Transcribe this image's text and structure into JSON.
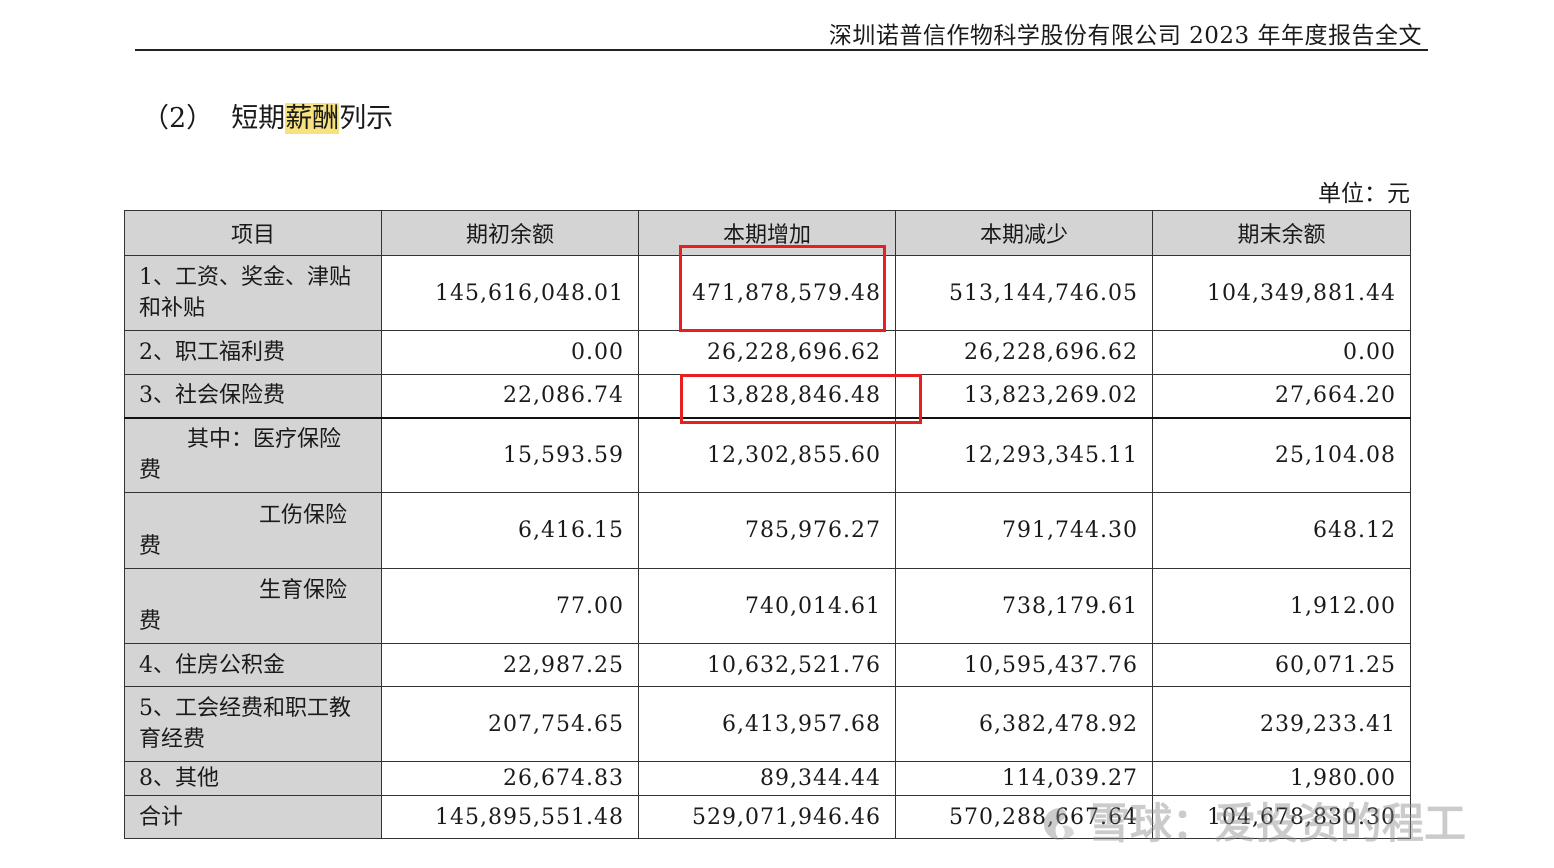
{
  "header": {
    "title": "深圳诺普信作物科学股份有限公司 2023 年年度报告全文"
  },
  "section": {
    "number": "（2）",
    "title_pre": "短期",
    "title_hl": "薪酬",
    "title_post": "列示"
  },
  "unit": "单位：元",
  "table": {
    "columns": [
      "项目",
      "期初余额",
      "本期增加",
      "本期减少",
      "期末余额"
    ],
    "rows": [
      {
        "item_a": "1、工资、奖金、津贴",
        "item_b": "和补贴",
        "values": [
          "145,616,048.01",
          "471,878,579.48",
          "513,144,746.05",
          "104,349,881.44"
        ]
      },
      {
        "item_a": "2、职工福利费",
        "item_b": "",
        "values": [
          "0.00",
          "26,228,696.62",
          "26,228,696.62",
          "0.00"
        ]
      },
      {
        "item_a": "3、社会保险费",
        "item_b": "",
        "values": [
          "22,086.74",
          "13,828,846.48",
          "13,823,269.02",
          "27,664.20"
        ]
      },
      {
        "item_a": "其中：医疗保险",
        "item_b": "费",
        "values": [
          "15,593.59",
          "12,302,855.60",
          "12,293,345.11",
          "25,104.08"
        ]
      },
      {
        "item_a": "工伤保险",
        "item_b": "费",
        "values": [
          "6,416.15",
          "785,976.27",
          "791,744.30",
          "648.12"
        ]
      },
      {
        "item_a": "生育保险",
        "item_b": "费",
        "values": [
          "77.00",
          "740,014.61",
          "738,179.61",
          "1,912.00"
        ]
      },
      {
        "item_a": "4、住房公积金",
        "item_b": "",
        "values": [
          "22,987.25",
          "10,632,521.76",
          "10,595,437.76",
          "60,071.25"
        ]
      },
      {
        "item_a": "5、工会经费和职工教",
        "item_b": "育经费",
        "values": [
          "207,754.65",
          "6,413,957.68",
          "6,382,478.92",
          "239,233.41"
        ]
      },
      {
        "item_a": "8、其他",
        "item_b": "",
        "values": [
          "26,674.83",
          "89,344.44",
          "114,039.27",
          "1,980.00"
        ]
      },
      {
        "item_a": "合计",
        "item_b": "",
        "values": [
          "145,895,551.48",
          "529,071,946.46",
          "570,288,667.64",
          "104,678,830.30"
        ]
      }
    ]
  },
  "watermark": {
    "text": "雪球：爱投资的程工"
  },
  "colors": {
    "highlight": "#f7e27d",
    "annotation_red": "#e62020",
    "header_fill": "#d4d4d4"
  }
}
